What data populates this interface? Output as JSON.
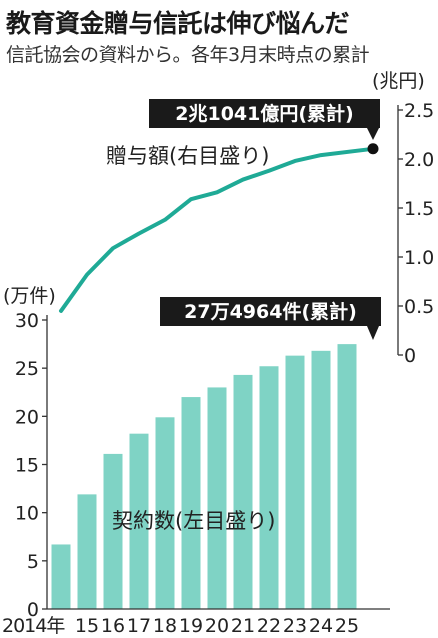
{
  "title": "教育資金贈与信託は伸び悩んだ",
  "subtitle": "信託協会の資料から。各年3月末時点の累計",
  "chart_data": {
    "type": "bar+line",
    "categories": [
      "2014年",
      "15",
      "16",
      "17",
      "18",
      "19",
      "20",
      "21",
      "22",
      "23",
      "24",
      "25"
    ],
    "bars": {
      "label": "契約数(左目盛り)",
      "unit": "(万件)",
      "values": [
        6.7,
        11.9,
        16.1,
        18.2,
        19.9,
        22.0,
        23.0,
        24.3,
        25.2,
        26.3,
        26.8,
        27.4964
      ],
      "ylim": [
        0,
        30
      ],
      "ticks": [
        0,
        5,
        10,
        15,
        20,
        25,
        30
      ],
      "callout": "27万4964件(累計)",
      "color": "#7fd3c5"
    },
    "line": {
      "label": "贈与額(右目盛り)",
      "unit": "(兆円)",
      "values": [
        0.45,
        0.82,
        1.09,
        1.24,
        1.38,
        1.59,
        1.66,
        1.79,
        1.88,
        1.98,
        2.04,
        2.1041
      ],
      "ylim": [
        0,
        2.5
      ],
      "ticks": [
        "0",
        "0.5",
        "1.0",
        "1.5",
        "2.0",
        "2.5"
      ],
      "callout": "2兆1041億円(累計)",
      "color": "#1faa96"
    }
  }
}
